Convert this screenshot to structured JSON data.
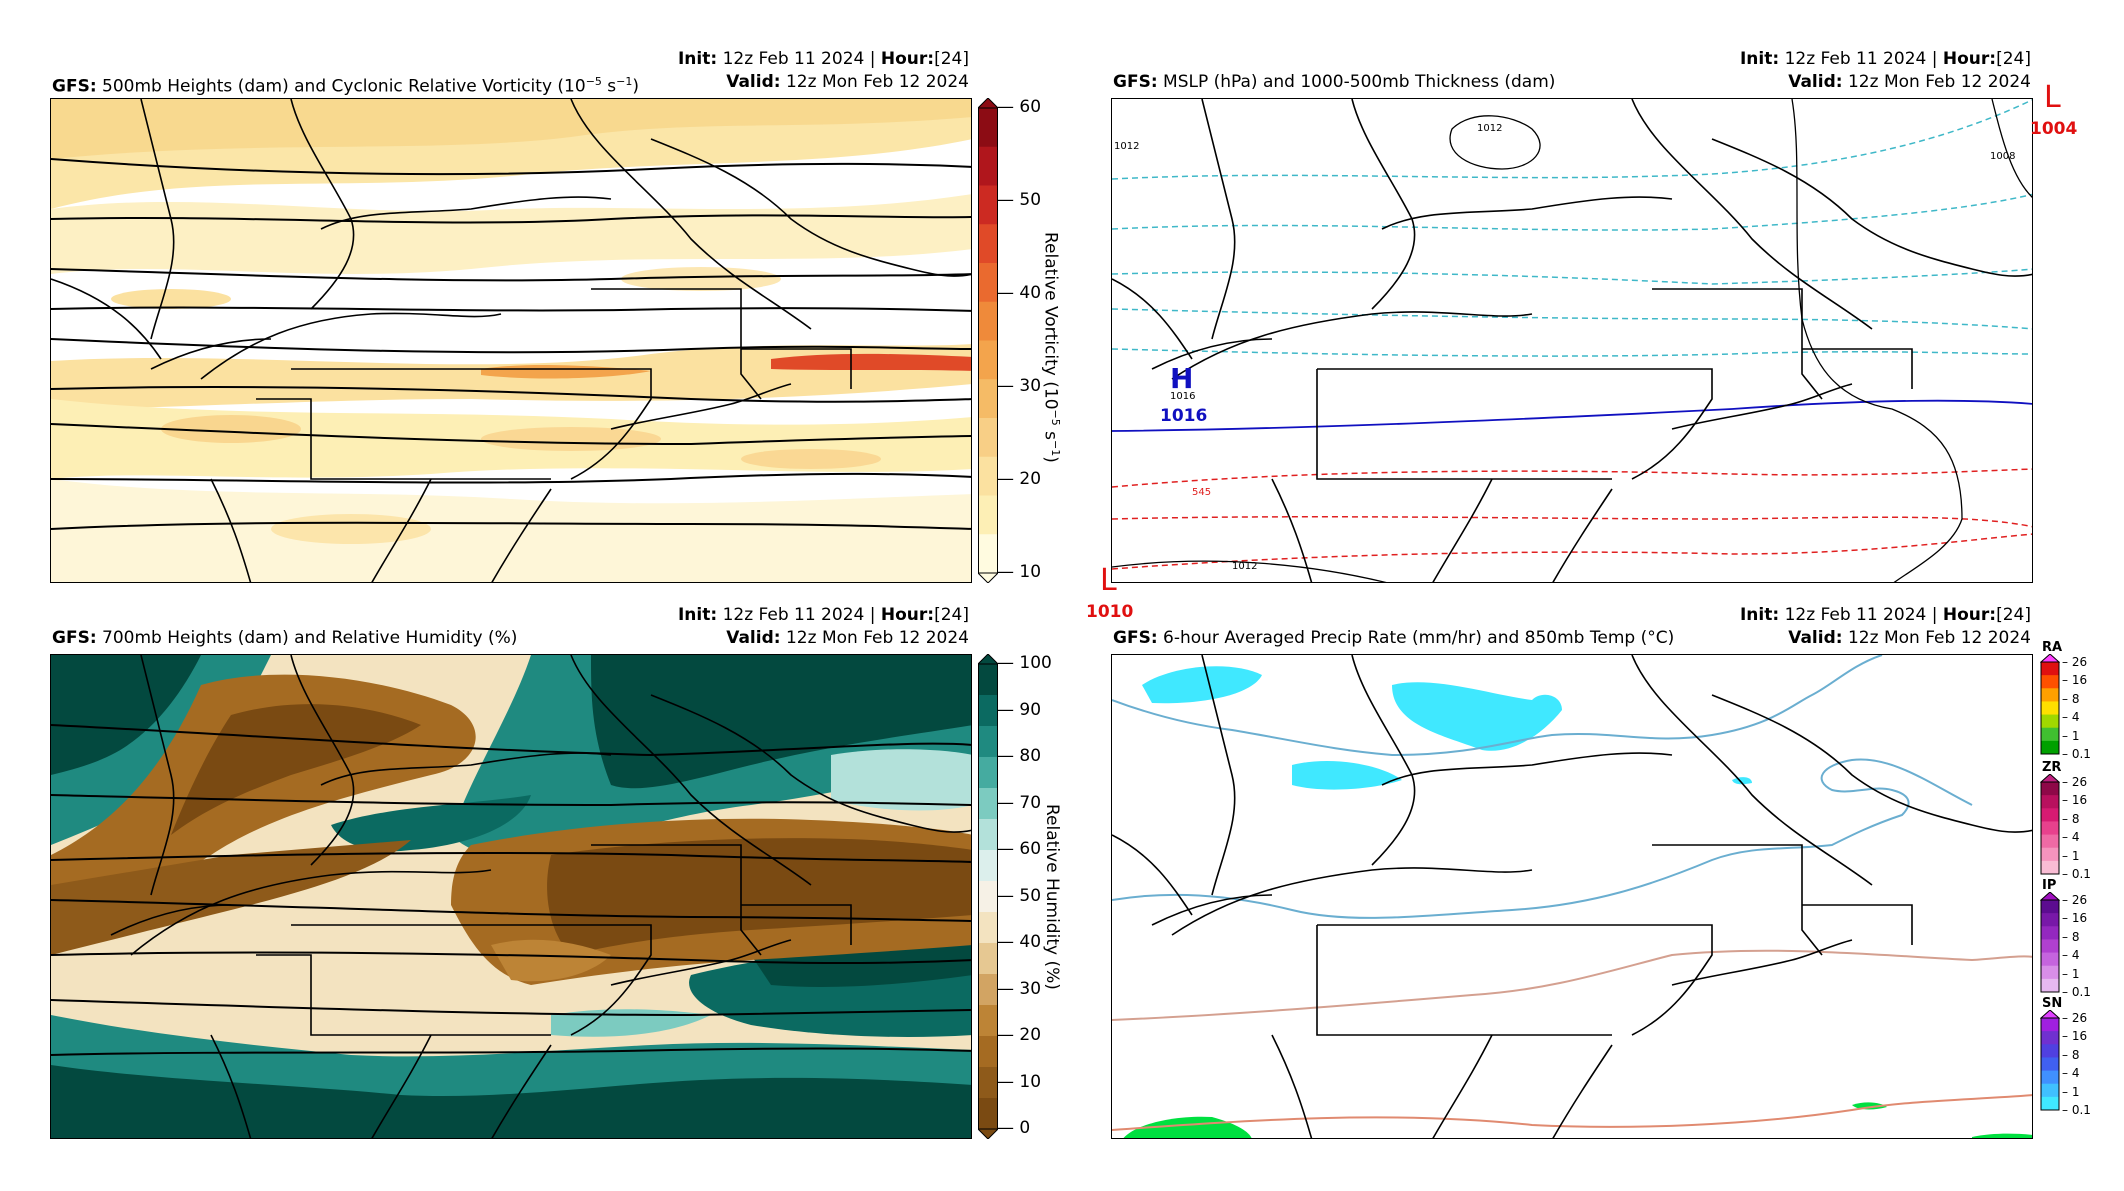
{
  "panels": [
    {
      "title_prefix": "GFS",
      "title": "500mb Heights (dam) and Cyclonic Relative Vorticity (10",
      "title_sup": "−5",
      "title_suffix": " s",
      "title_sup2": "−1",
      "title_end": ")",
      "init_label": "Init",
      "init_value": "12z Feb 11 2024",
      "hour_label": "Hour",
      "hour_value": "[24]",
      "valid_label": "Valid",
      "valid_value": "12z Mon Feb 12 2024"
    },
    {
      "title_prefix": "GFS",
      "title": "MSLP (hPa) and 1000-500mb Thickness (dam)",
      "init_label": "Init",
      "init_value": "12z Feb 11 2024",
      "hour_label": "Hour",
      "hour_value": "[24]",
      "valid_label": "Valid",
      "valid_value": "12z Mon Feb 12 2024"
    },
    {
      "title_prefix": "GFS",
      "title": "700mb Heights (dam) and Relative Humidity (%)",
      "init_label": "Init",
      "init_value": "12z Feb 11 2024",
      "hour_label": "Hour",
      "hour_value": "[24]",
      "valid_label": "Valid",
      "valid_value": "12z Mon Feb 12 2024"
    },
    {
      "title_prefix": "GFS",
      "title": "6-hour Averaged Precip Rate (mm/hr) and 850mb Temp (°C)",
      "init_label": "Init",
      "init_value": "12z Feb 11 2024",
      "hour_label": "Hour",
      "hour_value": "[24]",
      "valid_label": "Valid",
      "valid_value": "12z Mon Feb 12 2024"
    }
  ],
  "vorticity_colorbar": {
    "ticks": [
      "60",
      "50",
      "40",
      "30",
      "20",
      "10"
    ],
    "label": "Relative Vorticity (10",
    "label_sup": "−5",
    "label_mid": " s",
    "label_sup2": "−1",
    "label_end": ")",
    "colors": [
      "#fffbe0",
      "#fdefb5",
      "#fbe1a0",
      "#f8cf86",
      "#f5bb66",
      "#f3a44c",
      "#ef8a3a",
      "#ea6a2f",
      "#e04a28",
      "#cc2a22",
      "#b0161c",
      "#8c0c14"
    ]
  },
  "rh_colorbar": {
    "ticks": [
      "100",
      "90",
      "80",
      "70",
      "60",
      "50",
      "40",
      "30",
      "20",
      "10",
      "0"
    ],
    "label": "Relative Humidity (%)",
    "colors": [
      "#7a4a12",
      "#8e5a1a",
      "#a56b22",
      "#bd8436",
      "#d2a463",
      "#e6c892",
      "#f3e3c0",
      "#f6f1e6",
      "#dcefec",
      "#b3e1da",
      "#7ccbc0",
      "#45aba0",
      "#1f8a80",
      "#0b6a61",
      "#03493f"
    ]
  },
  "msl_markers": {
    "high_1_symbol": "H",
    "high_1_value": "1016",
    "low_1_symbol": "L",
    "low_1_value": "1004",
    "low_2_symbol": "L",
    "low_2_value": "1010",
    "contour_labels": [
      "1012",
      "1012",
      "1012",
      "1008",
      "1016",
      "545"
    ]
  },
  "precip_types": [
    {
      "name": "RA",
      "ticks": [
        "26",
        "16",
        "8",
        "4",
        "1",
        "0.1"
      ],
      "colors": [
        "#00a000",
        "#40c030",
        "#a0d800",
        "#ffe000",
        "#ffa000",
        "#ff5000",
        "#e01010",
        "#ff40ff"
      ]
    },
    {
      "name": "ZR",
      "ticks": [
        "26",
        "16",
        "8",
        "4",
        "1",
        "0.1"
      ],
      "colors": [
        "#f9bcd4",
        "#f593bd",
        "#ef6aa5",
        "#e8418d",
        "#d61a72",
        "#b8105e",
        "#8e0848",
        "#c02080"
      ]
    },
    {
      "name": "IP",
      "ticks": [
        "26",
        "16",
        "8",
        "4",
        "1",
        "0.1"
      ],
      "colors": [
        "#e6b8f0",
        "#d88ee8",
        "#c564de",
        "#b040d0",
        "#9428bf",
        "#7818a8",
        "#5c0c90",
        "#a010c0"
      ]
    },
    {
      "name": "SN",
      "ticks": [
        "26",
        "16",
        "8",
        "4",
        "1",
        "0.1"
      ],
      "colors": [
        "#40e8ff",
        "#40c0ff",
        "#4090ff",
        "#4060f0",
        "#5040e0",
        "#7030d0",
        "#a020e0",
        "#e040ff"
      ]
    }
  ]
}
